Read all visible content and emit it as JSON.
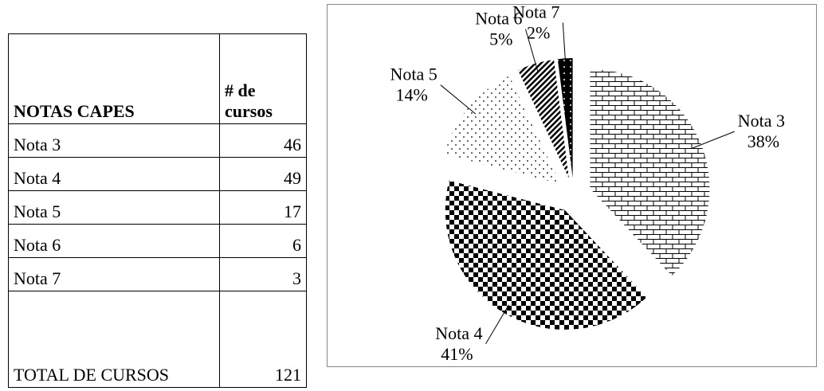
{
  "table": {
    "header": [
      "NOTAS CAPES",
      "# de cursos"
    ],
    "rows": [
      [
        "Nota 3",
        "46"
      ],
      [
        "Nota 4",
        "49"
      ],
      [
        "Nota 5",
        "17"
      ],
      [
        "Nota 6",
        "6"
      ],
      [
        "Nota 7",
        "3"
      ],
      [
        "TOTAL DE CURSOS",
        "121"
      ]
    ]
  },
  "chart_data": {
    "type": "pie",
    "categories": [
      "Nota 3",
      "Nota 4",
      "Nota 5",
      "Nota 6",
      "Nota 7"
    ],
    "values": [
      38,
      41,
      14,
      5,
      2
    ],
    "value_labels": [
      "38%",
      "41%",
      "14%",
      "5%",
      "2%"
    ]
  }
}
